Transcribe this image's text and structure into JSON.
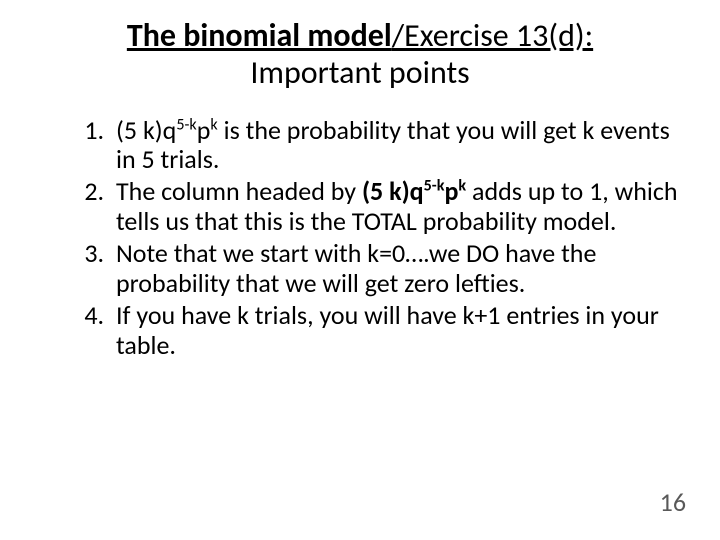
{
  "title": {
    "line1_prefix_bold": "The binomial model",
    "line1_suffix": "/Exercise 13(d):",
    "line2": "Important points"
  },
  "items": [
    {
      "pre": "(5 k)q",
      "sup1": "5-k",
      "mid": "p",
      "sup2": "k",
      "post": " is the probability that you will get k events in 5 trials."
    },
    {
      "pre": "The column headed by ",
      "bold_pre": "(5 k)q",
      "bold_sup1": "5-k",
      "bold_mid": "p",
      "bold_sup2": "k",
      "post": " adds up to 1, which tells us that this is the TOTAL probability model."
    },
    {
      "text": "Note that we start with k=0….we DO have the probability that we will get zero lefties."
    },
    {
      "text": "If you have k trials, you will have k+1 entries in your table."
    }
  ],
  "page_number": "16"
}
